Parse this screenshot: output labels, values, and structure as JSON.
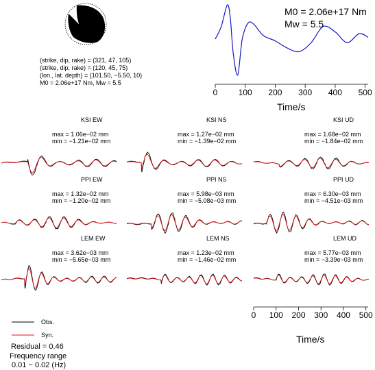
{
  "mechanism": {
    "lines": [
      "(strike, dip, rake) = (321, 47, 105)",
      "(strike, dip, rake) = (120, 45, 75)",
      "(lon., lat. depth) = (101.50, −5.50, 10)",
      "M0 = 2.06e+17 Nm, Mw = 5.5"
    ]
  },
  "source_time_function": {
    "m0_label": "M0 = 2.06e+17 Nm",
    "mw_label": "Mw = 5.5",
    "xlabel": "Time/s",
    "xticks": [
      "0",
      "100",
      "200",
      "300",
      "400",
      "500"
    ],
    "color": "#1515c8"
  },
  "traces": [
    {
      "station": "KSI EW",
      "max": "max = 1.06e−02 mm",
      "min": "min = −1.21e−02 mm"
    },
    {
      "station": "KSI NS",
      "max": "max = 1.27e−02 mm",
      "min": "min = −1.39e−02 mm"
    },
    {
      "station": "KSI UD",
      "max": "max = 1.68e−02 mm",
      "min": "min = −1.84e−02 mm"
    },
    {
      "station": "PPI EW",
      "max": "max = 1.32e−02 mm",
      "min": "min = −1.20e−02 mm"
    },
    {
      "station": "PPI NS",
      "max": "max = 5.98e−03 mm",
      "min": "min = −5.08e−03 mm"
    },
    {
      "station": "PPI UD",
      "max": "max = 6.30e−03 mm",
      "min": "min = −4.51e−03 mm"
    },
    {
      "station": "LEM EW",
      "max": "max = 3.62e−03 mm",
      "min": "min = −5.65e−03 mm"
    },
    {
      "station": "LEM NS",
      "max": "max = 1.23e−02 mm",
      "min": "min = −1.46e−02 mm"
    },
    {
      "station": "LEM UD",
      "max": "max = 5.77e−03 mm",
      "min": "min = −3.39e−03 mm"
    }
  ],
  "legend": {
    "obs_label": "Obs.",
    "syn_label": "Syn.",
    "obs_color": "#000000",
    "syn_color": "#e01010"
  },
  "summary": {
    "residual": "Residual = 0.46",
    "freq_title": "Frequency range",
    "freq_value": "0.01 − 0.02 (Hz)"
  },
  "time_axis": {
    "xlabel": "Time/s",
    "xticks": [
      "0",
      "100",
      "200",
      "300",
      "400",
      "500"
    ]
  },
  "chart_data": [
    {
      "type": "line",
      "x": [
        0,
        20,
        40,
        50,
        60,
        75,
        90,
        110,
        130,
        160,
        200,
        240,
        280,
        320,
        360,
        400,
        440,
        480,
        510
      ],
      "series": [
        {
          "values": [
            0.0,
            0.35,
            0.95,
            0.6,
            -0.4,
            -1.0,
            0.0,
            0.45,
            0.4,
            0.1,
            -0.05,
            -0.25,
            -0.35,
            -0.1,
            0.35,
            0.2,
            -0.1,
            0.15,
            0.05
          ]
        }
      ],
      "xlabel": "Time/s",
      "xticks": [
        0,
        100,
        200,
        300,
        400,
        500
      ],
      "xlim": [
        0,
        510
      ],
      "ylim": [
        -1.05,
        1.05
      ],
      "grid": false
    },
    {
      "type": "line",
      "xlabel": "Time/s",
      "xticks": [
        0,
        100,
        200,
        300,
        400,
        500
      ],
      "xlim": [
        0,
        510
      ],
      "panels": [
        "KSI EW",
        "KSI NS",
        "KSI UD",
        "PPI EW",
        "PPI NS",
        "PPI UD",
        "LEM EW",
        "LEM NS",
        "LEM UD"
      ],
      "series": [
        {
          "name": "Obs."
        },
        {
          "name": "Syn."
        }
      ]
    }
  ]
}
